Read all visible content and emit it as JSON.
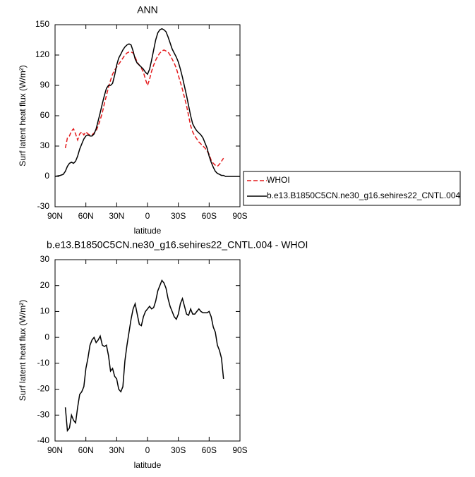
{
  "chart_data": [
    {
      "type": "line",
      "title": "ANN",
      "xlabel": "latitude",
      "ylabel": "Surf latent heat flux (W/m²)",
      "xlim": [
        90,
        -90
      ],
      "xticks": [
        {
          "value": 90,
          "label": "90N"
        },
        {
          "value": 60,
          "label": "60N"
        },
        {
          "value": 30,
          "label": "30N"
        },
        0,
        {
          "value": -30,
          "label": "30S"
        },
        {
          "value": -60,
          "label": "60S"
        },
        {
          "value": -90,
          "label": "90S"
        }
      ],
      "ylim": [
        -30,
        150
      ],
      "yticks": [
        -30,
        0,
        30,
        60,
        90,
        120,
        150
      ],
      "legend": "outside-right",
      "series": [
        {
          "name": "WHOI",
          "color": "#e41a1c",
          "dash": true,
          "x": [
            80,
            78,
            76,
            74,
            72,
            70,
            68,
            66,
            64,
            62,
            60,
            58,
            56,
            54,
            52,
            50,
            48,
            46,
            44,
            42,
            40,
            38,
            36,
            34,
            32,
            30,
            28,
            26,
            24,
            22,
            20,
            18,
            16,
            14,
            12,
            10,
            8,
            6,
            4,
            2,
            0,
            -2,
            -4,
            -6,
            -8,
            -10,
            -12,
            -14,
            -16,
            -18,
            -20,
            -22,
            -24,
            -26,
            -28,
            -30,
            -32,
            -34,
            -36,
            -38,
            -40,
            -42,
            -44,
            -46,
            -48,
            -50,
            -52,
            -54,
            -56,
            -58,
            -60,
            -62,
            -64,
            -66,
            -68,
            -70,
            -72,
            -74
          ],
          "values": [
            28,
            38,
            40,
            45,
            47,
            42,
            36,
            42,
            44,
            41,
            44,
            42,
            41,
            41,
            43,
            45,
            50,
            56,
            63,
            72,
            80,
            88,
            95,
            101,
            105,
            108,
            111,
            114,
            117,
            120,
            122,
            123,
            123,
            122,
            118,
            113,
            110,
            107,
            103,
            96,
            90,
            96,
            104,
            110,
            115,
            119,
            122,
            124,
            125,
            124,
            123,
            120,
            116,
            112,
            107,
            100,
            93,
            86,
            78,
            70,
            60,
            50,
            44,
            40,
            37,
            34,
            32,
            30,
            28,
            25,
            22,
            16,
            13,
            11,
            10,
            12,
            15,
            18
          ]
        },
        {
          "name": "b.e13.B1850C5CN.ne30_g16.sehires22_CNTL.004",
          "color": "#000000",
          "dash": false,
          "x": [
            90,
            85,
            82,
            80,
            78,
            76,
            74,
            72,
            70,
            68,
            66,
            64,
            62,
            60,
            58,
            56,
            54,
            52,
            50,
            48,
            46,
            44,
            42,
            40,
            38,
            36,
            34,
            32,
            30,
            28,
            26,
            24,
            22,
            20,
            18,
            16,
            14,
            12,
            10,
            8,
            6,
            4,
            2,
            0,
            -2,
            -4,
            -6,
            -8,
            -10,
            -12,
            -14,
            -16,
            -18,
            -20,
            -22,
            -24,
            -26,
            -28,
            -30,
            -32,
            -34,
            -36,
            -38,
            -40,
            -42,
            -44,
            -46,
            -48,
            -50,
            -52,
            -54,
            -56,
            -58,
            -60,
            -62,
            -64,
            -66,
            -68,
            -70,
            -72,
            -74,
            -76,
            -80,
            -85,
            -90
          ],
          "values": [
            0,
            1,
            2,
            5,
            10,
            13,
            14,
            13,
            15,
            20,
            27,
            32,
            37,
            40,
            41,
            40,
            40,
            42,
            47,
            55,
            63,
            72,
            80,
            87,
            90,
            90,
            92,
            100,
            110,
            117,
            121,
            125,
            128,
            130,
            131,
            130,
            124,
            116,
            112,
            110,
            108,
            106,
            103,
            101,
            106,
            115,
            125,
            135,
            142,
            145,
            146,
            145,
            143,
            138,
            132,
            126,
            122,
            118,
            113,
            106,
            98,
            89,
            80,
            70,
            60,
            52,
            48,
            45,
            43,
            41,
            38,
            33,
            28,
            20,
            14,
            9,
            5,
            3,
            2,
            1,
            1,
            0,
            0,
            0,
            0
          ]
        }
      ]
    },
    {
      "type": "line",
      "title": "b.e13.B1850C5CN.ne30_g16.sehires22_CNTL.004 - WHOI",
      "xlabel": "latitude",
      "ylabel": "Surf latent heat flux (W/m²)",
      "xlim": [
        90,
        -90
      ],
      "xticks": [
        {
          "value": 90,
          "label": "90N"
        },
        {
          "value": 60,
          "label": "60N"
        },
        {
          "value": 30,
          "label": "30N"
        },
        0,
        {
          "value": -30,
          "label": "30S"
        },
        {
          "value": -60,
          "label": "60S"
        },
        {
          "value": -90,
          "label": "90S"
        }
      ],
      "ylim": [
        -40,
        30
      ],
      "yticks": [
        -40,
        -30,
        -20,
        -10,
        0,
        10,
        20,
        30
      ],
      "series": [
        {
          "color": "#000000",
          "dash": false,
          "x": [
            80,
            78,
            76,
            74,
            72,
            70,
            68,
            66,
            64,
            62,
            60,
            58,
            56,
            54,
            52,
            50,
            48,
            46,
            44,
            42,
            40,
            38,
            36,
            34,
            32,
            30,
            28,
            26,
            24,
            22,
            20,
            18,
            16,
            14,
            12,
            10,
            8,
            6,
            4,
            2,
            0,
            -2,
            -4,
            -6,
            -8,
            -10,
            -12,
            -14,
            -16,
            -18,
            -20,
            -22,
            -24,
            -26,
            -28,
            -30,
            -32,
            -34,
            -36,
            -38,
            -40,
            -42,
            -44,
            -46,
            -48,
            -50,
            -52,
            -54,
            -56,
            -58,
            -60,
            -62,
            -64,
            -66,
            -68,
            -70,
            -72,
            -74
          ],
          "values": [
            -27,
            -36,
            -35,
            -30,
            -32,
            -33,
            -27,
            -22,
            -21,
            -19,
            -12,
            -8,
            -3,
            -1,
            0,
            -2,
            -1,
            0.5,
            -3,
            -3.5,
            -3,
            -7,
            -13,
            -12,
            -15,
            -16,
            -20,
            -21,
            -19,
            -9,
            -3,
            2,
            7,
            11,
            13,
            9,
            5,
            4.5,
            8,
            10,
            11,
            12,
            11,
            11.5,
            14,
            18,
            20,
            22,
            21,
            19,
            15,
            12,
            10,
            8,
            7,
            9,
            13,
            15,
            12,
            9,
            8.5,
            11,
            9,
            9,
            10,
            11,
            10,
            9.5,
            9.5,
            9.5,
            10,
            8,
            4,
            2,
            -3,
            -5,
            -8,
            -16
          ]
        }
      ]
    }
  ]
}
